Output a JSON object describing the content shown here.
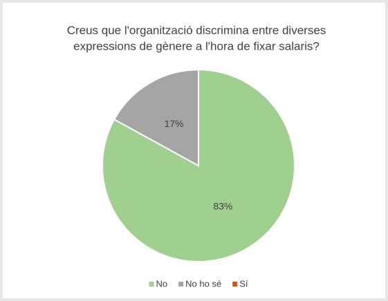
{
  "chart_data": {
    "type": "pie",
    "title": [
      "Creus que l'organització discrimina entre diverses",
      "expressions de gènere a l'hora de fixar salaris?"
    ],
    "categories": [
      "No",
      "No ho sé",
      "Sí"
    ],
    "values": [
      83,
      17,
      0
    ],
    "value_labels": [
      "83%",
      "17%",
      null
    ],
    "colors": [
      "#9fd08f",
      "#a5a5a5",
      "#c55a11"
    ],
    "legend": "bottom"
  }
}
